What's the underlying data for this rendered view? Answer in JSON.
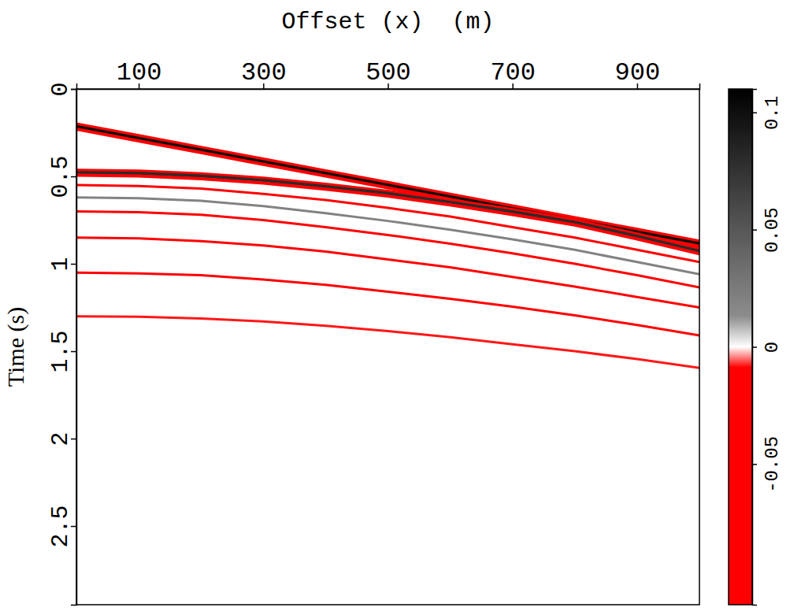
{
  "chart_data": {
    "type": "seismic",
    "x_label": "Offset (x)  (m)",
    "y_label": "Time (s)",
    "xlim": [
      0,
      1000
    ],
    "xticks": [
      100,
      300,
      500,
      700,
      900
    ],
    "ylim": [
      0,
      2.95
    ],
    "yticks": [
      0,
      0.5,
      1,
      1.5,
      2,
      2.5
    ],
    "colorbar": {
      "range": [
        -0.11,
        0.11
      ],
      "ticks": [
        -0.05,
        0,
        0.05,
        0.1
      ]
    },
    "x": [
      0,
      100,
      200,
      300,
      400,
      500,
      600,
      700,
      800,
      900,
      1000
    ],
    "series": [
      {
        "amplitude": -0.1,
        "values": [
          0.2,
          0.267,
          0.334,
          0.401,
          0.468,
          0.535,
          0.602,
          0.669,
          0.736,
          0.803,
          0.87
        ]
      },
      {
        "amplitude": 0.1,
        "values": [
          0.215,
          0.282,
          0.349,
          0.416,
          0.483,
          0.55,
          0.617,
          0.684,
          0.751,
          0.818,
          0.885
        ]
      },
      {
        "amplitude": -0.1,
        "values": [
          0.23,
          0.297,
          0.364,
          0.431,
          0.498,
          0.565,
          0.632,
          0.699,
          0.766,
          0.833,
          0.9
        ]
      },
      {
        "amplitude": -0.06,
        "values": [
          0.465,
          0.47,
          0.485,
          0.51,
          0.545,
          0.585,
          0.635,
          0.69,
          0.75,
          0.83,
          0.915
        ]
      },
      {
        "amplitude": 0.08,
        "values": [
          0.478,
          0.483,
          0.498,
          0.523,
          0.558,
          0.598,
          0.648,
          0.703,
          0.763,
          0.843,
          0.928
        ]
      },
      {
        "amplitude": -0.04,
        "values": [
          0.493,
          0.498,
          0.513,
          0.538,
          0.573,
          0.613,
          0.663,
          0.718,
          0.778,
          0.858,
          0.943
        ]
      },
      {
        "amplitude": -0.025,
        "values": [
          0.55,
          0.555,
          0.57,
          0.6,
          0.635,
          0.68,
          0.73,
          0.79,
          0.85,
          0.92,
          0.99
        ]
      },
      {
        "amplitude": 0.02,
        "values": [
          0.62,
          0.625,
          0.64,
          0.67,
          0.71,
          0.755,
          0.805,
          0.86,
          0.92,
          0.99,
          1.06
        ]
      },
      {
        "amplitude": -0.02,
        "values": [
          0.7,
          0.705,
          0.72,
          0.75,
          0.79,
          0.835,
          0.885,
          0.94,
          1.0,
          1.065,
          1.135
        ]
      },
      {
        "amplitude": -0.015,
        "values": [
          0.85,
          0.855,
          0.87,
          0.895,
          0.93,
          0.975,
          1.02,
          1.075,
          1.13,
          1.19,
          1.25
        ]
      },
      {
        "amplitude": -0.012,
        "values": [
          1.05,
          1.055,
          1.065,
          1.09,
          1.12,
          1.16,
          1.2,
          1.245,
          1.295,
          1.35,
          1.41
        ]
      },
      {
        "amplitude": -0.008,
        "values": [
          1.3,
          1.303,
          1.313,
          1.33,
          1.355,
          1.385,
          1.42,
          1.46,
          1.5,
          1.545,
          1.595
        ]
      }
    ]
  }
}
